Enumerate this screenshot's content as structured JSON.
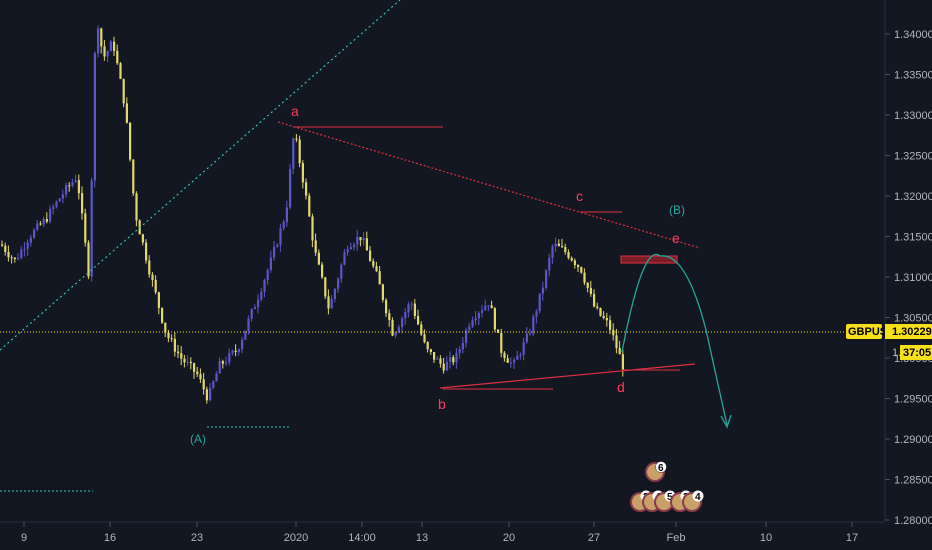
{
  "colors": {
    "background": "#131722",
    "candle_up": "#5b57c9",
    "candle_down": "#e3d96a",
    "price_line": "#f7e017",
    "wave_label": "#ff3b5c",
    "corrective_label": "#26a69a",
    "projection": "#26a69a",
    "trend_dotted": "#2ec4a6",
    "box": "#e03040",
    "axis_text": "#b2b5be"
  },
  "chart_data": {
    "type": "candlestick",
    "symbol": "GBPUSD",
    "last_price": "1.30229",
    "countdown": "37:05",
    "countdown_prefix": "1.",
    "y_ticks": [
      "1.34000",
      "1.33500",
      "1.33000",
      "1.32500",
      "1.32000",
      "1.31500",
      "1.31000",
      "1.30500",
      "1.30000",
      "1.29500",
      "1.29000",
      "1.28500",
      "1.28000"
    ],
    "x_ticks": [
      "9",
      "16",
      "23",
      "2020",
      "14:00",
      "13",
      "20",
      "27",
      "Feb",
      "10",
      "17"
    ],
    "ylim": [
      1.2785,
      1.3425
    ],
    "wave_labels": [
      "a",
      "b",
      "c",
      "d",
      "e"
    ],
    "corrective_labels": [
      "(A)",
      "(B)"
    ],
    "wave_points": [
      {
        "label": "a",
        "price": 1.3285
      },
      {
        "label": "b",
        "price": 1.2955
      },
      {
        "label": "c",
        "price": 1.3175
      },
      {
        "label": "d",
        "price": 1.2975
      },
      {
        "label": "e",
        "price": 1.3145
      }
    ],
    "event_badges": [
      "6",
      "2",
      "4",
      "5",
      "3",
      "4"
    ]
  }
}
